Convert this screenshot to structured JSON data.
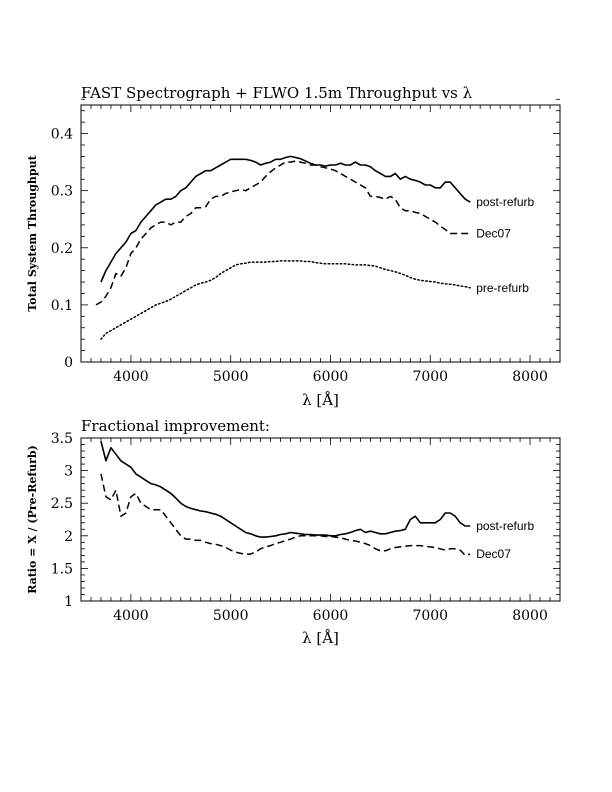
{
  "chart_data": [
    {
      "type": "line",
      "title": "FAST Spectrograph + FLWO 1.5m Throughput vs λ",
      "xlabel": "λ [Å]",
      "ylabel": "Total System Throughput",
      "xlim": [
        3500,
        8300
      ],
      "ylim": [
        0,
        0.45
      ],
      "x_ticks": [
        4000,
        5000,
        6000,
        7000,
        8000
      ],
      "y_ticks": [
        0,
        0.1,
        0.2,
        0.3,
        0.4
      ],
      "x_tick_labels": [
        "4000",
        "5000",
        "6000",
        "7000",
        "8000"
      ],
      "y_tick_labels": [
        "0",
        "0.1",
        "0.2",
        "0.3",
        "0.4"
      ],
      "grid": false,
      "series": [
        {
          "name": "post-refurb",
          "style": "solid",
          "x": [
            3700,
            3750,
            3800,
            3850,
            3900,
            3950,
            4000,
            4050,
            4100,
            4150,
            4200,
            4250,
            4300,
            4350,
            4400,
            4450,
            4500,
            4550,
            4600,
            4650,
            4700,
            4750,
            4800,
            4850,
            4900,
            4950,
            5000,
            5050,
            5100,
            5150,
            5200,
            5250,
            5300,
            5350,
            5400,
            5450,
            5500,
            5550,
            5600,
            5650,
            5700,
            5750,
            5800,
            5850,
            5900,
            5950,
            6000,
            6050,
            6100,
            6150,
            6200,
            6250,
            6300,
            6350,
            6400,
            6450,
            6500,
            6550,
            6600,
            6650,
            6700,
            6750,
            6800,
            6850,
            6900,
            6950,
            7000,
            7050,
            7100,
            7150,
            7200,
            7250,
            7300,
            7350,
            7400
          ],
          "y": [
            0.14,
            0.16,
            0.175,
            0.19,
            0.2,
            0.21,
            0.225,
            0.23,
            0.245,
            0.255,
            0.265,
            0.275,
            0.28,
            0.285,
            0.285,
            0.29,
            0.3,
            0.305,
            0.315,
            0.325,
            0.33,
            0.335,
            0.335,
            0.34,
            0.345,
            0.35,
            0.355,
            0.355,
            0.355,
            0.355,
            0.353,
            0.35,
            0.345,
            0.348,
            0.35,
            0.355,
            0.355,
            0.358,
            0.36,
            0.358,
            0.356,
            0.352,
            0.348,
            0.345,
            0.345,
            0.343,
            0.345,
            0.345,
            0.348,
            0.345,
            0.345,
            0.35,
            0.345,
            0.345,
            0.342,
            0.335,
            0.33,
            0.325,
            0.325,
            0.33,
            0.32,
            0.325,
            0.32,
            0.318,
            0.315,
            0.31,
            0.31,
            0.305,
            0.305,
            0.315,
            0.315,
            0.305,
            0.295,
            0.285,
            0.28
          ]
        },
        {
          "name": "Dec07",
          "style": "dashed",
          "x": [
            3650,
            3700,
            3750,
            3800,
            3850,
            3900,
            3950,
            4000,
            4050,
            4100,
            4150,
            4200,
            4250,
            4300,
            4350,
            4400,
            4450,
            4500,
            4550,
            4600,
            4650,
            4700,
            4750,
            4800,
            4850,
            4900,
            4950,
            5000,
            5050,
            5100,
            5150,
            5200,
            5250,
            5300,
            5350,
            5400,
            5450,
            5500,
            5550,
            5600,
            5650,
            5700,
            5750,
            5800,
            5850,
            5900,
            5950,
            6000,
            6050,
            6100,
            6150,
            6200,
            6250,
            6300,
            6350,
            6400,
            6450,
            6500,
            6550,
            6600,
            6650,
            6700,
            6750,
            6800,
            6850,
            6900,
            6950,
            7000,
            7050,
            7100,
            7150,
            7200,
            7250,
            7300,
            7350,
            7400
          ],
          "y": [
            0.1,
            0.105,
            0.115,
            0.13,
            0.155,
            0.15,
            0.165,
            0.19,
            0.2,
            0.215,
            0.225,
            0.235,
            0.24,
            0.245,
            0.245,
            0.24,
            0.245,
            0.245,
            0.255,
            0.26,
            0.27,
            0.27,
            0.272,
            0.285,
            0.29,
            0.29,
            0.295,
            0.298,
            0.3,
            0.302,
            0.3,
            0.305,
            0.31,
            0.315,
            0.325,
            0.333,
            0.34,
            0.345,
            0.35,
            0.35,
            0.352,
            0.35,
            0.348,
            0.345,
            0.345,
            0.342,
            0.34,
            0.338,
            0.335,
            0.33,
            0.325,
            0.32,
            0.315,
            0.31,
            0.305,
            0.29,
            0.29,
            0.288,
            0.285,
            0.29,
            0.285,
            0.27,
            0.265,
            0.265,
            0.262,
            0.26,
            0.255,
            0.25,
            0.245,
            0.238,
            0.232,
            0.225,
            0.225,
            0.225,
            0.225,
            0.225
          ]
        },
        {
          "name": "pre-refurb",
          "style": "dotted",
          "x": [
            3700,
            3750,
            3800,
            3850,
            3900,
            3950,
            4000,
            4050,
            4100,
            4150,
            4200,
            4250,
            4300,
            4350,
            4400,
            4450,
            4500,
            4550,
            4600,
            4650,
            4700,
            4750,
            4800,
            4850,
            4900,
            4950,
            5000,
            5050,
            5100,
            5150,
            5200,
            5250,
            5300,
            5350,
            5400,
            5450,
            5500,
            5550,
            5600,
            5650,
            5700,
            5750,
            5800,
            5850,
            5900,
            5950,
            6000,
            6050,
            6100,
            6150,
            6200,
            6250,
            6300,
            6350,
            6400,
            6450,
            6500,
            6550,
            6600,
            6650,
            6700,
            6750,
            6800,
            6850,
            6900,
            6950,
            7000,
            7050,
            7100,
            7150,
            7200,
            7250,
            7300,
            7350,
            7400
          ],
          "y": [
            0.04,
            0.05,
            0.055,
            0.06,
            0.065,
            0.07,
            0.075,
            0.08,
            0.085,
            0.09,
            0.095,
            0.1,
            0.103,
            0.106,
            0.11,
            0.115,
            0.12,
            0.125,
            0.13,
            0.135,
            0.138,
            0.14,
            0.143,
            0.148,
            0.155,
            0.16,
            0.165,
            0.17,
            0.172,
            0.173,
            0.175,
            0.175,
            0.175,
            0.175,
            0.176,
            0.176,
            0.177,
            0.177,
            0.177,
            0.177,
            0.177,
            0.176,
            0.176,
            0.174,
            0.173,
            0.172,
            0.172,
            0.172,
            0.172,
            0.172,
            0.171,
            0.17,
            0.17,
            0.17,
            0.169,
            0.168,
            0.165,
            0.162,
            0.16,
            0.158,
            0.155,
            0.152,
            0.148,
            0.145,
            0.143,
            0.142,
            0.141,
            0.14,
            0.138,
            0.137,
            0.136,
            0.135,
            0.133,
            0.132,
            0.13
          ]
        }
      ]
    },
    {
      "type": "line",
      "title": "Fractional improvement:",
      "xlabel": "λ [Å]",
      "ylabel": "Ratio = X / (Pre-Refurb)",
      "xlim": [
        3500,
        8300
      ],
      "ylim": [
        1,
        3.5
      ],
      "x_ticks": [
        4000,
        5000,
        6000,
        7000,
        8000
      ],
      "y_ticks": [
        1,
        1.5,
        2,
        2.5,
        3,
        3.5
      ],
      "x_tick_labels": [
        "4000",
        "5000",
        "6000",
        "7000",
        "8000"
      ],
      "y_tick_labels": [
        "1",
        "1.5",
        "2",
        "2.5",
        "3",
        "3.5"
      ],
      "grid": false,
      "series": [
        {
          "name": "post-refurb",
          "style": "solid",
          "x": [
            3700,
            3750,
            3800,
            3850,
            3900,
            3950,
            4000,
            4050,
            4100,
            4150,
            4200,
            4250,
            4300,
            4350,
            4400,
            4450,
            4500,
            4550,
            4600,
            4650,
            4700,
            4750,
            4800,
            4850,
            4900,
            4950,
            5000,
            5050,
            5100,
            5150,
            5200,
            5250,
            5300,
            5350,
            5400,
            5450,
            5500,
            5550,
            5600,
            5650,
            5700,
            5750,
            5800,
            5850,
            5900,
            5950,
            6000,
            6050,
            6100,
            6150,
            6200,
            6250,
            6300,
            6350,
            6400,
            6450,
            6500,
            6550,
            6600,
            6650,
            6700,
            6750,
            6800,
            6850,
            6900,
            6950,
            7000,
            7050,
            7100,
            7150,
            7200,
            7250,
            7300,
            7350,
            7400
          ],
          "y": [
            3.45,
            3.15,
            3.35,
            3.25,
            3.15,
            3.1,
            3.05,
            2.95,
            2.9,
            2.85,
            2.8,
            2.78,
            2.75,
            2.7,
            2.65,
            2.58,
            2.5,
            2.45,
            2.42,
            2.4,
            2.38,
            2.37,
            2.35,
            2.33,
            2.3,
            2.25,
            2.2,
            2.15,
            2.1,
            2.05,
            2.03,
            2.0,
            1.98,
            1.98,
            1.99,
            2.0,
            2.02,
            2.03,
            2.05,
            2.04,
            2.03,
            2.02,
            2.02,
            2.01,
            2.01,
            2.01,
            2.0,
            2.0,
            2.02,
            2.03,
            2.05,
            2.08,
            2.1,
            2.05,
            2.07,
            2.05,
            2.03,
            2.03,
            2.05,
            2.07,
            2.08,
            2.1,
            2.25,
            2.3,
            2.2,
            2.2,
            2.2,
            2.2,
            2.25,
            2.35,
            2.35,
            2.3,
            2.2,
            2.15,
            2.15
          ]
        },
        {
          "name": "Dec07",
          "style": "dashed",
          "x": [
            3700,
            3750,
            3800,
            3850,
            3900,
            3950,
            4000,
            4050,
            4100,
            4150,
            4200,
            4250,
            4300,
            4350,
            4400,
            4450,
            4500,
            4550,
            4600,
            4650,
            4700,
            4750,
            4800,
            4850,
            4900,
            4950,
            5000,
            5050,
            5100,
            5150,
            5200,
            5250,
            5300,
            5350,
            5400,
            5450,
            5500,
            5550,
            5600,
            5650,
            5700,
            5750,
            5800,
            5850,
            5900,
            5950,
            6000,
            6050,
            6100,
            6150,
            6200,
            6250,
            6300,
            6350,
            6400,
            6450,
            6500,
            6550,
            6600,
            6650,
            6700,
            6750,
            6800,
            6850,
            6900,
            6950,
            7000,
            7050,
            7100,
            7150,
            7200,
            7250,
            7300,
            7350,
            7400
          ],
          "y": [
            2.95,
            2.6,
            2.55,
            2.7,
            2.3,
            2.35,
            2.6,
            2.65,
            2.5,
            2.45,
            2.4,
            2.4,
            2.4,
            2.3,
            2.2,
            2.1,
            2.0,
            1.95,
            1.95,
            1.93,
            1.93,
            1.9,
            1.88,
            1.87,
            1.85,
            1.82,
            1.78,
            1.75,
            1.73,
            1.72,
            1.72,
            1.75,
            1.8,
            1.83,
            1.85,
            1.88,
            1.9,
            1.93,
            1.95,
            1.98,
            2.0,
            2.0,
            2.0,
            2.0,
            2.0,
            1.99,
            1.99,
            1.98,
            1.97,
            1.95,
            1.93,
            1.92,
            1.9,
            1.88,
            1.85,
            1.8,
            1.77,
            1.77,
            1.8,
            1.82,
            1.83,
            1.84,
            1.85,
            1.85,
            1.85,
            1.84,
            1.83,
            1.82,
            1.8,
            1.78,
            1.8,
            1.8,
            1.78,
            1.7,
            1.72
          ]
        }
      ]
    }
  ]
}
